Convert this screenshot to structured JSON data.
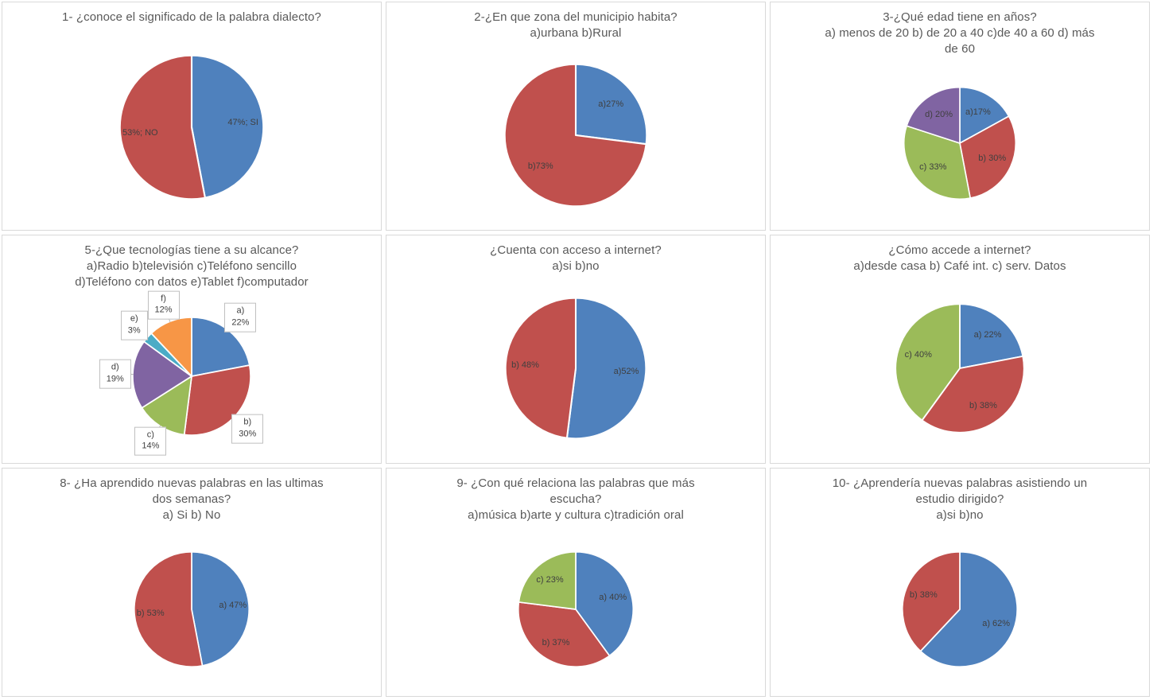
{
  "page": {
    "background": "#ffffff",
    "panel_border": "#d9d9d9",
    "title_color": "#595959",
    "label_color": "#3f3f3f"
  },
  "palette": {
    "blue": "#4F81BD",
    "red": "#C0504D",
    "green": "#9BBB59",
    "purple": "#8064A2",
    "teal": "#4BACC6",
    "orange": "#F79646"
  },
  "chart_data": [
    {
      "type": "pie",
      "title": "1- ¿conoce el significado de la palabra dialecto?",
      "legend_position": "none",
      "slices": [
        {
          "label": "47%; SI",
          "name": "SI",
          "value": 47,
          "color": "#4F81BD"
        },
        {
          "label": "53%; NO",
          "name": "NO",
          "value": 53,
          "color": "#C0504D"
        }
      ]
    },
    {
      "type": "pie",
      "title": "2-¿En que zona del municipio habita?\na)urbana b)Rural",
      "legend_position": "none",
      "slices": [
        {
          "label": "a)27%",
          "name": "a) urbana",
          "value": 27,
          "color": "#4F81BD"
        },
        {
          "label": "b)73%",
          "name": "b) Rural",
          "value": 73,
          "color": "#C0504D"
        }
      ]
    },
    {
      "type": "pie",
      "title": "3-¿Qué edad tiene en años?\na) menos de 20 b) de 20 a 40 c)de 40 a 60 d) más\nde 60",
      "legend_position": "none",
      "slices": [
        {
          "label": "a)17%",
          "name": "a) menos de 20",
          "value": 17,
          "color": "#4F81BD"
        },
        {
          "label": "b) 30%",
          "name": "b) de 20 a 40",
          "value": 30,
          "color": "#C0504D"
        },
        {
          "label": "c) 33%",
          "name": "c) de 40 a 60",
          "value": 33,
          "color": "#9BBB59"
        },
        {
          "label": "d) 20%",
          "name": "d) más de 60",
          "value": 20,
          "color": "#8064A2"
        }
      ]
    },
    {
      "type": "pie",
      "title": "5-¿Que tecnologías tiene a su alcance?\na)Radio b)televisión c)Teléfono sencillo\nd)Teléfono con datos e)Tablet f)computador",
      "legend_position": "none",
      "label_style": "callout",
      "slices": [
        {
          "label": "a)\n22%",
          "name": "a) Radio",
          "value": 22,
          "color": "#4F81BD"
        },
        {
          "label": "b)\n30%",
          "name": "b) televisión",
          "value": 30,
          "color": "#C0504D"
        },
        {
          "label": "c)\n14%",
          "name": "c) Teléfono sencillo",
          "value": 14,
          "color": "#9BBB59"
        },
        {
          "label": "d)\n19%",
          "name": "d) Teléfono con datos",
          "value": 19,
          "color": "#8064A2"
        },
        {
          "label": "e)\n3%",
          "name": "e) Tablet",
          "value": 3,
          "color": "#4BACC6"
        },
        {
          "label": "f)\n12%",
          "name": "f) computador",
          "value": 12,
          "color": "#F79646"
        }
      ]
    },
    {
      "type": "pie",
      "title": "¿Cuenta con acceso a internet?\na)si b)no",
      "legend_position": "none",
      "slices": [
        {
          "label": "a)52%",
          "name": "a) si",
          "value": 52,
          "color": "#4F81BD"
        },
        {
          "label": "b) 48%",
          "name": "b) no",
          "value": 48,
          "color": "#C0504D"
        }
      ]
    },
    {
      "type": "pie",
      "title": "¿Cómo accede a internet?\na)desde casa b) Café int. c) serv. Datos",
      "legend_position": "none",
      "slices": [
        {
          "label": "a) 22%",
          "name": "a) desde casa",
          "value": 22,
          "color": "#4F81BD"
        },
        {
          "label": "b) 38%",
          "name": "b) Café int.",
          "value": 38,
          "color": "#C0504D"
        },
        {
          "label": "c) 40%",
          "name": "c) serv. Datos",
          "value": 40,
          "color": "#9BBB59"
        }
      ]
    },
    {
      "type": "pie",
      "title": "8- ¿Ha aprendido nuevas palabras en las ultimas\ndos semanas?\na) Si b) No",
      "legend_position": "none",
      "slices": [
        {
          "label": "a) 47%",
          "name": "a) Si",
          "value": 47,
          "color": "#4F81BD"
        },
        {
          "label": "b) 53%",
          "name": "b) No",
          "value": 53,
          "color": "#C0504D"
        }
      ]
    },
    {
      "type": "pie",
      "title": "9- ¿Con qué relaciona las palabras que más\nescucha?\na)música b)arte y cultura c)tradición oral",
      "legend_position": "none",
      "slices": [
        {
          "label": "a) 40%",
          "name": "a) música",
          "value": 40,
          "color": "#4F81BD"
        },
        {
          "label": "b) 37%",
          "name": "b) arte y cultura",
          "value": 37,
          "color": "#C0504D"
        },
        {
          "label": "c) 23%",
          "name": "c) tradición oral",
          "value": 23,
          "color": "#9BBB59"
        }
      ]
    },
    {
      "type": "pie",
      "title": "10- ¿Aprendería nuevas palabras asistiendo un\nestudio dirigido?\na)si b)no",
      "legend_position": "none",
      "slices": [
        {
          "label": "a) 62%",
          "name": "a) si",
          "value": 62,
          "color": "#4F81BD"
        },
        {
          "label": "b) 38%",
          "name": "b) no",
          "value": 38,
          "color": "#C0504D"
        }
      ]
    }
  ]
}
